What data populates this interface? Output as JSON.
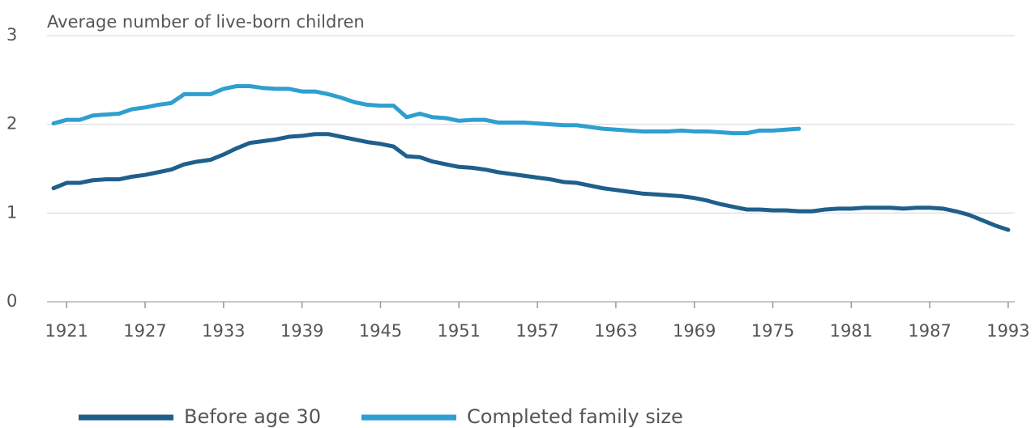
{
  "chart_data": {
    "type": "line",
    "ylabel": "Average number of live-born children",
    "x": [
      1920,
      1921,
      1922,
      1923,
      1924,
      1925,
      1926,
      1927,
      1928,
      1929,
      1930,
      1931,
      1932,
      1933,
      1934,
      1935,
      1936,
      1937,
      1938,
      1939,
      1940,
      1941,
      1942,
      1943,
      1944,
      1945,
      1946,
      1947,
      1948,
      1949,
      1950,
      1951,
      1952,
      1953,
      1954,
      1955,
      1956,
      1957,
      1958,
      1959,
      1960,
      1961,
      1962,
      1963,
      1964,
      1965,
      1966,
      1967,
      1968,
      1969,
      1970,
      1971,
      1972,
      1973,
      1974,
      1975,
      1976,
      1977,
      1978,
      1979,
      1980,
      1981,
      1982,
      1983,
      1984,
      1985,
      1986,
      1987,
      1988,
      1989,
      1990,
      1991,
      1992,
      1993
    ],
    "series": [
      {
        "name": "Before age 30",
        "color": "#1f5f8b",
        "values": [
          1.28,
          1.34,
          1.34,
          1.37,
          1.38,
          1.38,
          1.41,
          1.43,
          1.46,
          1.49,
          1.55,
          1.58,
          1.6,
          1.66,
          1.73,
          1.79,
          1.81,
          1.83,
          1.86,
          1.87,
          1.89,
          1.89,
          1.86,
          1.83,
          1.8,
          1.78,
          1.75,
          1.64,
          1.63,
          1.58,
          1.55,
          1.52,
          1.51,
          1.49,
          1.46,
          1.44,
          1.42,
          1.4,
          1.38,
          1.35,
          1.34,
          1.31,
          1.28,
          1.26,
          1.24,
          1.22,
          1.21,
          1.2,
          1.19,
          1.17,
          1.14,
          1.1,
          1.07,
          1.04,
          1.04,
          1.03,
          1.03,
          1.02,
          1.02,
          1.04,
          1.05,
          1.05,
          1.06,
          1.06,
          1.06,
          1.05,
          1.06,
          1.06,
          1.05,
          1.02,
          0.98,
          0.92,
          0.86,
          0.81
        ]
      },
      {
        "name": "Completed family size",
        "color": "#2e9fd0",
        "values": [
          2.01,
          2.05,
          2.05,
          2.1,
          2.11,
          2.12,
          2.17,
          2.19,
          2.22,
          2.24,
          2.34,
          2.34,
          2.34,
          2.4,
          2.43,
          2.43,
          2.41,
          2.4,
          2.4,
          2.37,
          2.37,
          2.34,
          2.3,
          2.25,
          2.22,
          2.21,
          2.21,
          2.08,
          2.12,
          2.08,
          2.07,
          2.04,
          2.05,
          2.05,
          2.02,
          2.02,
          2.02,
          2.01,
          2.0,
          1.99,
          1.99,
          1.97,
          1.95,
          1.94,
          1.93,
          1.92,
          1.92,
          1.92,
          1.93,
          1.92,
          1.92,
          1.91,
          1.9,
          1.9,
          1.93,
          1.93,
          1.94,
          1.95,
          null,
          null,
          null,
          null,
          null,
          null,
          null,
          null,
          null,
          null,
          null,
          null,
          null,
          null,
          null,
          null
        ]
      }
    ],
    "xlim": [
      1919.5,
      1993.5
    ],
    "xticks": [
      1921,
      1927,
      1933,
      1939,
      1945,
      1951,
      1957,
      1963,
      1969,
      1975,
      1981,
      1987,
      1993
    ],
    "ylim": [
      0,
      3
    ],
    "yticks": [
      0,
      1,
      2,
      3
    ],
    "grid": true,
    "legend": "bottom"
  }
}
